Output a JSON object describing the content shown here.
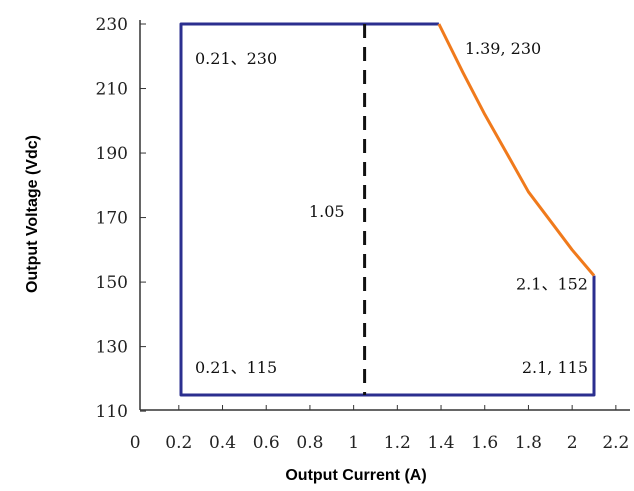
{
  "chart_data": {
    "type": "line",
    "xlabel": "Output Current (A)",
    "ylabel": "Output Voltage (Vdc)",
    "xlim": [
      0,
      2.2
    ],
    "ylim": [
      110,
      230
    ],
    "x_ticks": [
      "0",
      "0.2",
      "0.4",
      "0.6",
      "0.8",
      "1",
      "1.2",
      "1.4",
      "1.6",
      "1.8",
      "2",
      "2.2"
    ],
    "x_tick_values": [
      0,
      0.2,
      0.4,
      0.6,
      0.8,
      1.0,
      1.2,
      1.4,
      1.6,
      1.8,
      2.0,
      2.2
    ],
    "y_ticks": [
      "230",
      "210",
      "190",
      "170",
      "150",
      "130",
      "110"
    ],
    "y_tick_values": [
      230,
      210,
      190,
      170,
      150,
      130,
      110
    ],
    "grid": false,
    "series": [
      {
        "color": "#2b2f8f",
        "style": "solid",
        "points": [
          [
            1.39,
            230
          ],
          [
            0.21,
            230
          ],
          [
            0.21,
            115
          ],
          [
            2.1,
            115
          ],
          [
            2.1,
            152
          ]
        ]
      },
      {
        "color": "#f07a1c",
        "style": "solid",
        "points": [
          [
            1.39,
            230
          ],
          [
            1.5,
            215
          ],
          [
            1.6,
            202
          ],
          [
            1.7,
            190
          ],
          [
            1.8,
            178
          ],
          [
            1.9,
            169
          ],
          [
            2.0,
            160
          ],
          [
            2.1,
            152
          ]
        ]
      },
      {
        "color": "#111111",
        "style": "dashed",
        "points": [
          [
            1.05,
            230
          ],
          [
            1.05,
            115
          ]
        ]
      }
    ],
    "annotations": [
      {
        "text": "0.21、230",
        "x": 0.21,
        "y": 230
      },
      {
        "text": "1.39, 230",
        "x": 1.39,
        "y": 230
      },
      {
        "text": "1.05",
        "x": 1.05,
        "y": 172
      },
      {
        "text": "2.1、152",
        "x": 2.1,
        "y": 152
      },
      {
        "text": "0.21、115",
        "x": 0.21,
        "y": 115
      },
      {
        "text": "2.1, 115",
        "x": 2.1,
        "y": 115
      }
    ]
  }
}
